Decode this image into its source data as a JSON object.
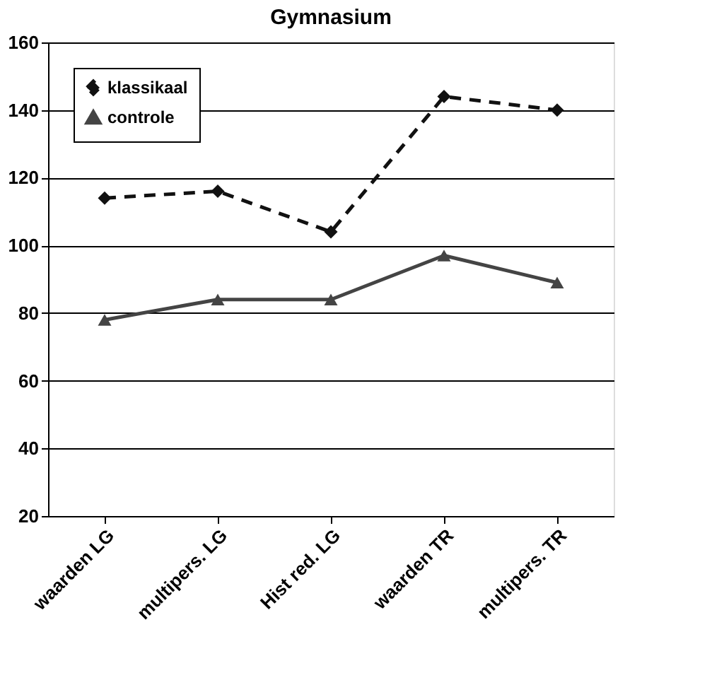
{
  "chart_data": {
    "type": "line",
    "title": "Gymnasium",
    "categories": [
      "waarden LG",
      "multipers. LG",
      "Hist red. LG",
      "waarden TR",
      "multipers. TR"
    ],
    "series": [
      {
        "name": "klassikaal",
        "color": "#111111",
        "values": [
          114,
          116,
          104,
          144,
          140
        ],
        "marker": "diamond",
        "line_style": "dashed"
      },
      {
        "name": "controle",
        "color": "#444444",
        "values": [
          78,
          84,
          84,
          97,
          89
        ],
        "marker": "triangle",
        "line_style": "solid"
      }
    ],
    "ylim": [
      20,
      160
    ],
    "yticks": [
      20,
      40,
      60,
      80,
      100,
      120,
      140,
      160
    ],
    "grid": "y",
    "legend": "top left"
  }
}
